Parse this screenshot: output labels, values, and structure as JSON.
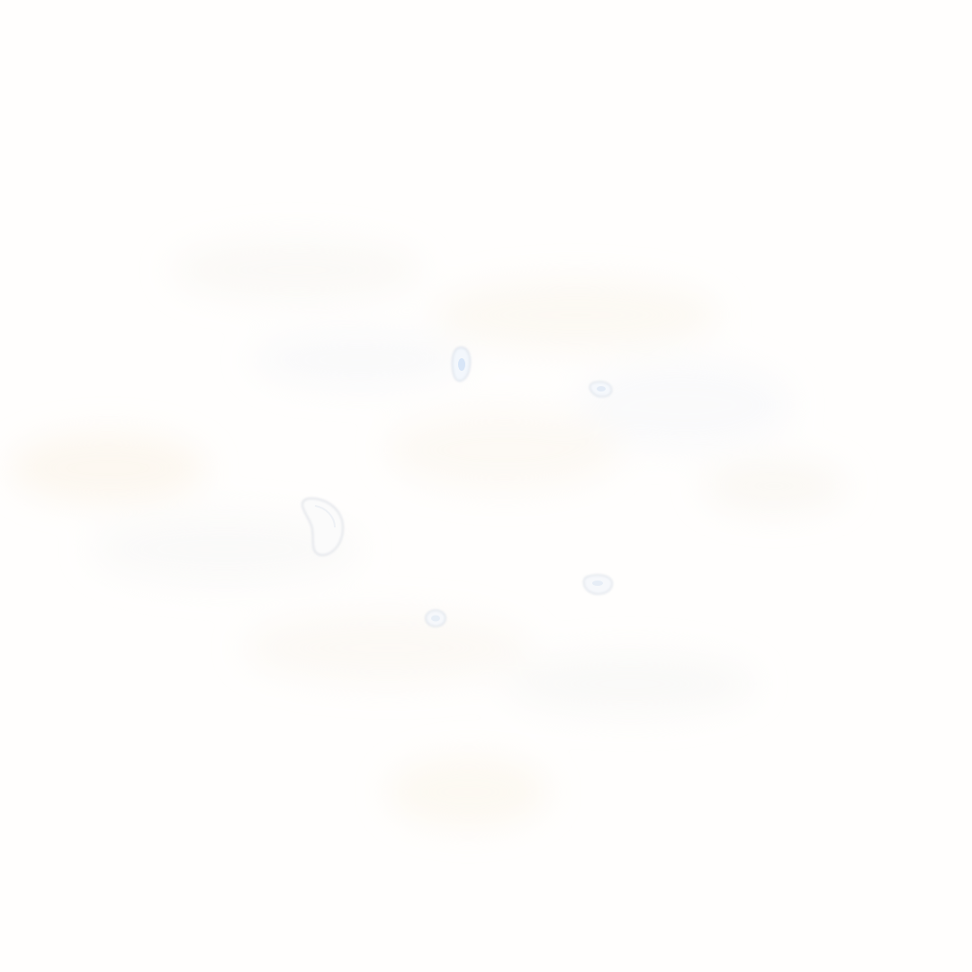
{
  "image": {
    "description_kind": "near-white textured surface with faint translucent droplets",
    "colors": {
      "background": "#fffefd",
      "texture_warm": "#fbf6ee",
      "texture_cool": "#f4f7fb",
      "droplet_fill": "#f3f7fc",
      "droplet_edge": "#d7dee8",
      "droplet_tint": "#cfe0f5"
    }
  }
}
